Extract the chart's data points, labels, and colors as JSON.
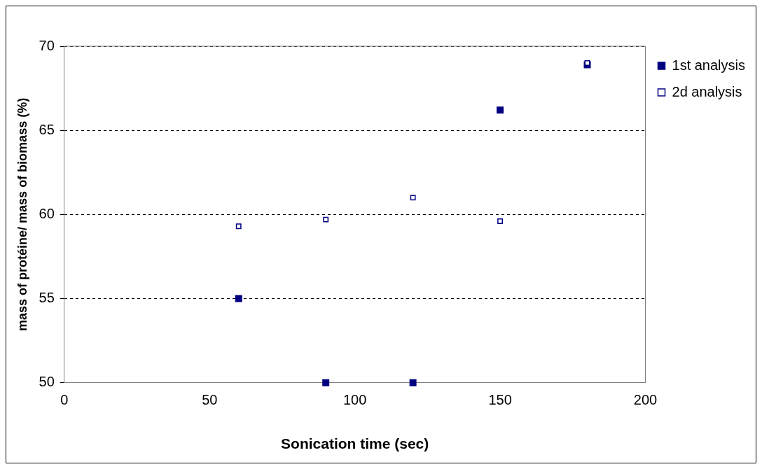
{
  "chart_data": {
    "type": "scatter",
    "xlabel": "Sonication time (sec)",
    "ylabel": "mass of protéine/ mass of biomass (%)",
    "x": [
      60,
      90,
      120,
      150,
      180
    ],
    "series": [
      {
        "name": "1st analysis",
        "color": "#000080",
        "values": [
          55,
          50,
          50,
          66.2,
          68.9
        ]
      },
      {
        "name": "2d analysis",
        "color": "#000080",
        "values": [
          59.3,
          59.7,
          61.0,
          59.6,
          69.0
        ]
      }
    ],
    "xlim": [
      0,
      200
    ],
    "xticks": [
      0,
      50,
      100,
      150,
      200
    ],
    "ylim": [
      50,
      70
    ],
    "yticks": [
      50,
      55,
      60,
      65,
      70
    ],
    "grid": "y",
    "legend": "top right",
    "marker": "square"
  }
}
